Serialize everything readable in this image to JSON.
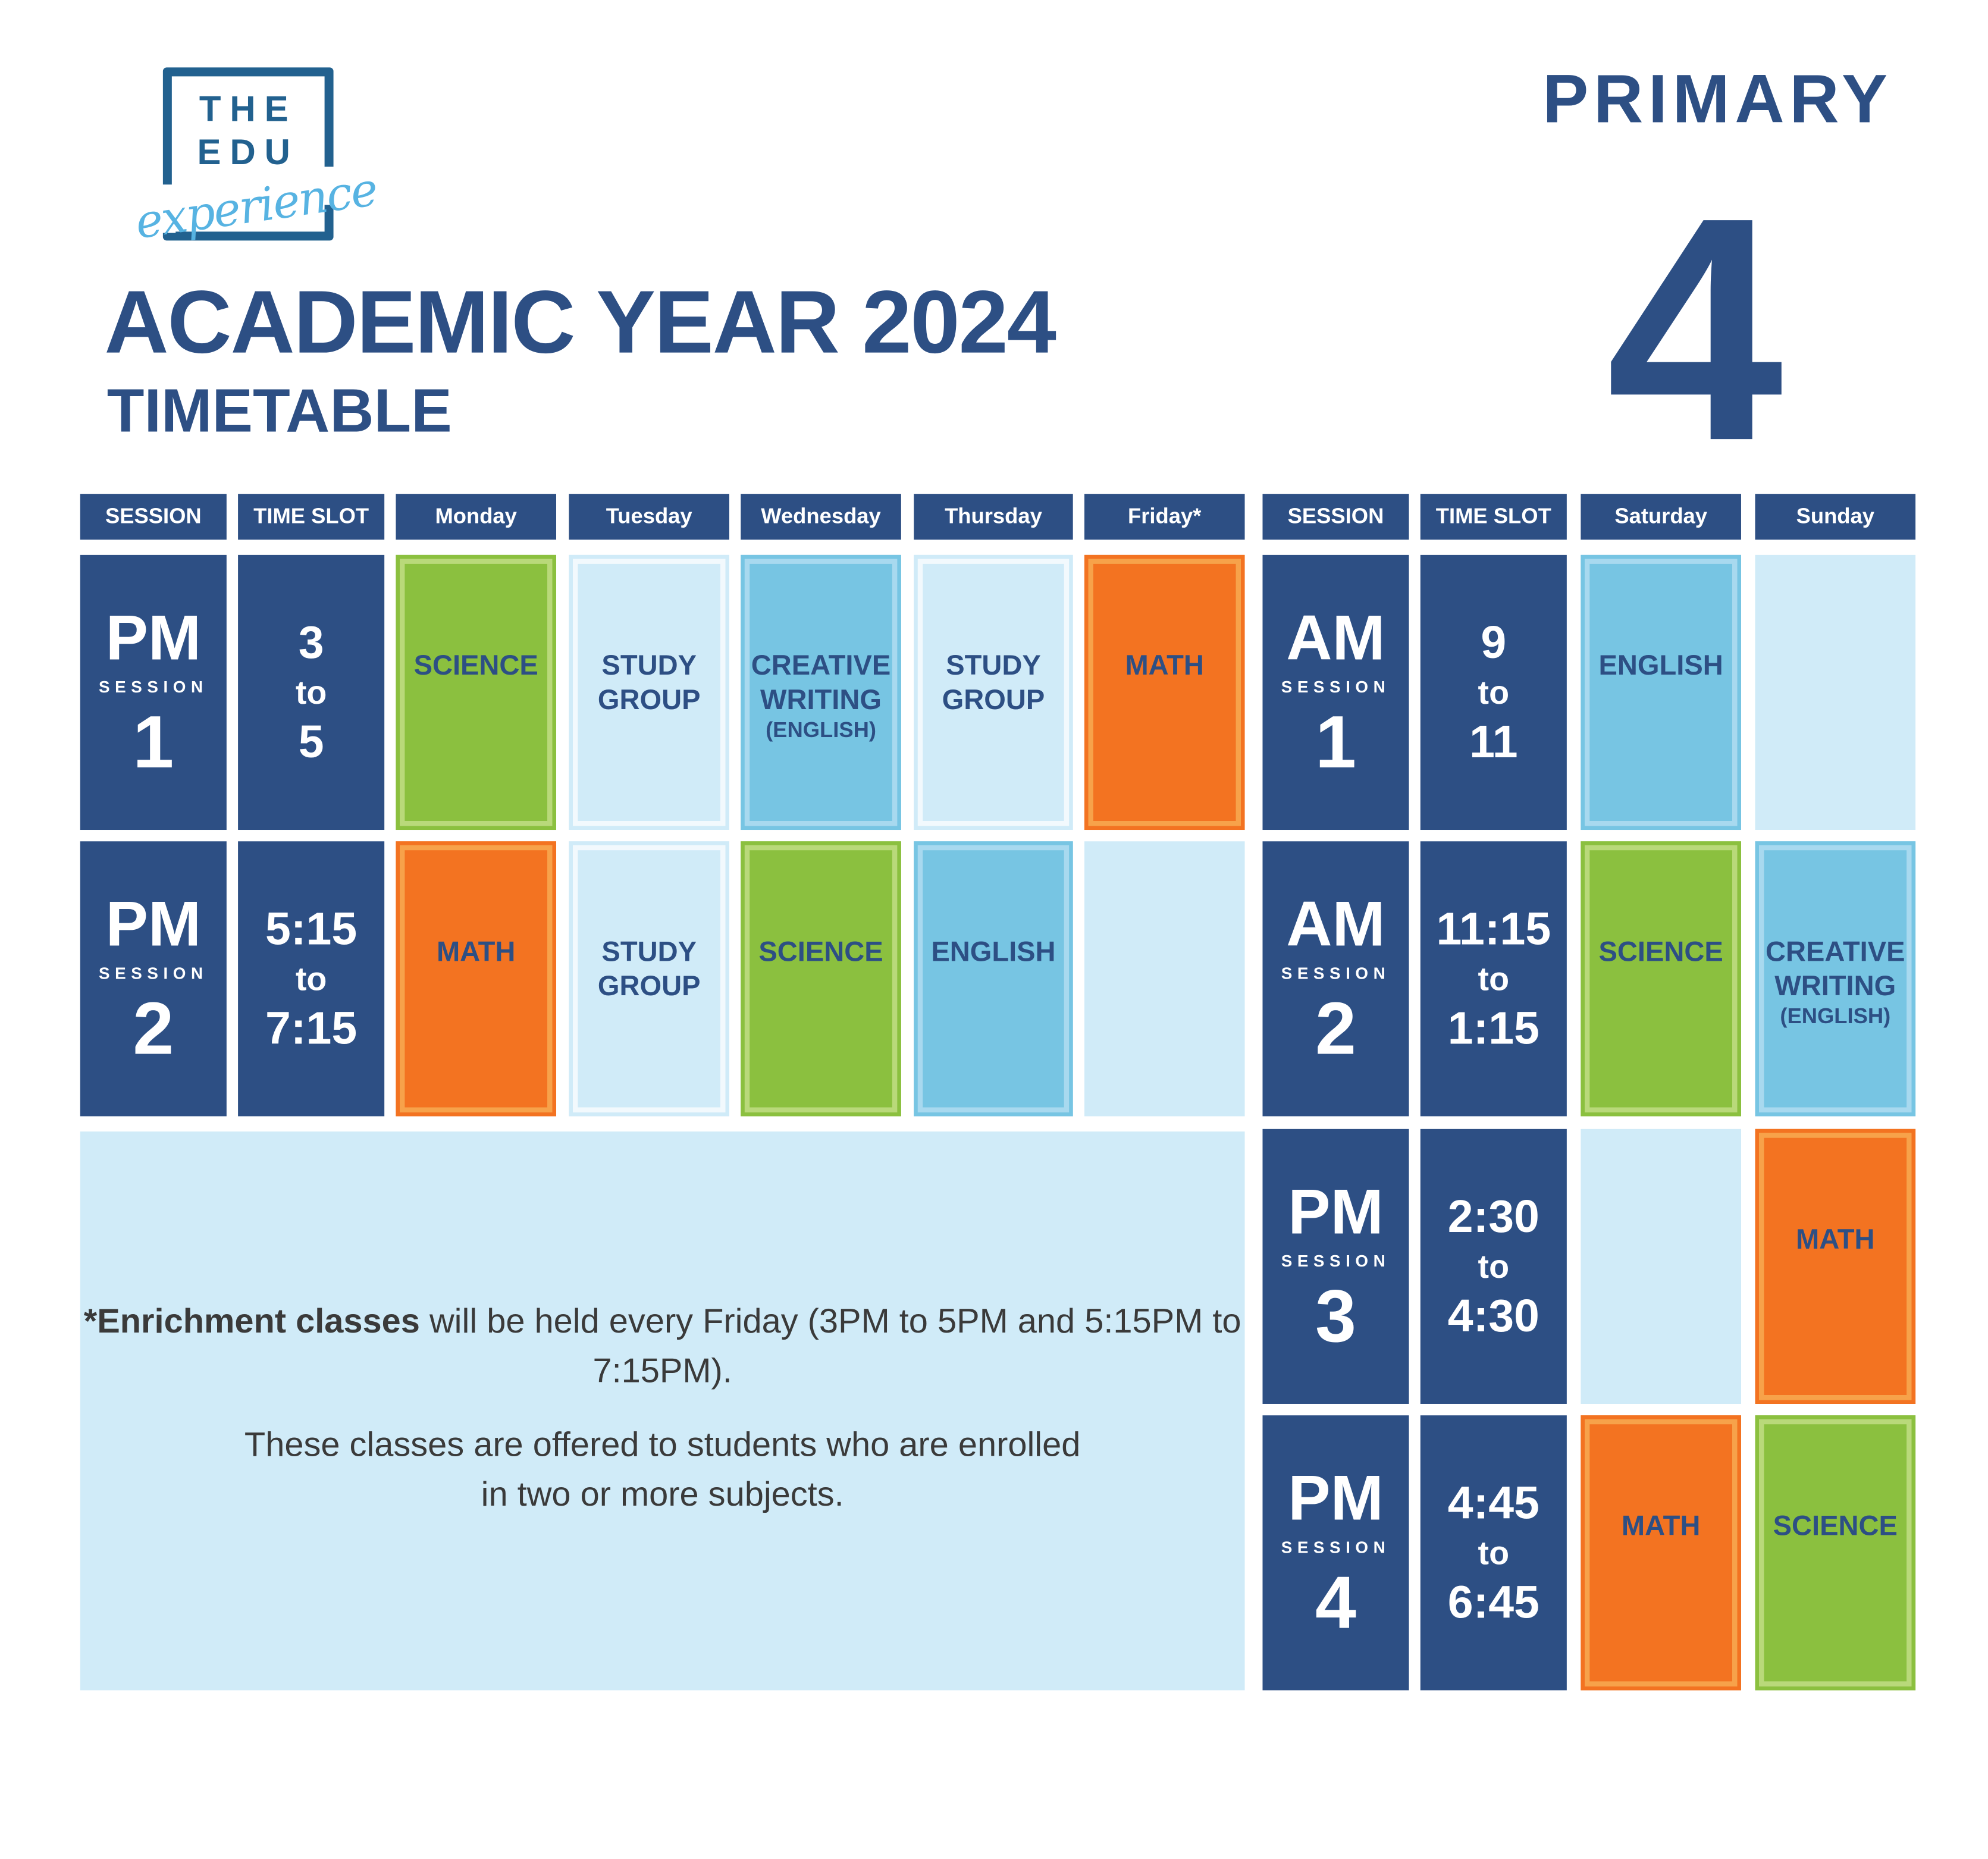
{
  "logo": {
    "line1": "THE",
    "line2": "EDU",
    "script": "experience"
  },
  "title": "ACADEMIC YEAR 2024",
  "subtitle": "TIMETABLE",
  "level": {
    "label": "PRIMARY",
    "grade": "4"
  },
  "colors": {
    "navy": "#2D4F84",
    "green": "#8BC03F",
    "orange": "#F37321",
    "blue": "#77C5E3",
    "light": "#D0EBF8"
  },
  "weekday": {
    "headers": [
      "SESSION",
      "TIME SLOT",
      "Monday",
      "Tuesday",
      "Wednesday",
      "Thursday",
      "Friday*"
    ],
    "rows": [
      {
        "period": "PM",
        "label": "SESSION",
        "num": "1",
        "time": [
          "3",
          "to",
          "5"
        ],
        "cells": [
          {
            "lines": [
              "SCIENCE"
            ],
            "color": "green"
          },
          {
            "lines": [
              "STUDY",
              "GROUP"
            ],
            "color": "light"
          },
          {
            "lines": [
              "CREATIVE",
              "WRITING",
              "(ENGLISH)"
            ],
            "color": "blue"
          },
          {
            "lines": [
              "STUDY",
              "GROUP"
            ],
            "color": "light"
          },
          {
            "lines": [
              "MATH"
            ],
            "color": "orange"
          }
        ]
      },
      {
        "period": "PM",
        "label": "SESSION",
        "num": "2",
        "time": [
          "5:15",
          "to",
          "7:15"
        ],
        "cells": [
          {
            "lines": [
              "MATH"
            ],
            "color": "orange"
          },
          {
            "lines": [
              "STUDY",
              "GROUP"
            ],
            "color": "light"
          },
          {
            "lines": [
              "SCIENCE"
            ],
            "color": "green"
          },
          {
            "lines": [
              "ENGLISH"
            ],
            "color": "blue"
          },
          {
            "lines": [],
            "color": "empty"
          }
        ]
      }
    ]
  },
  "weekend": {
    "headers": [
      "SESSION",
      "TIME SLOT",
      "Saturday",
      "Sunday"
    ],
    "rows": [
      {
        "period": "AM",
        "label": "SESSION",
        "num": "1",
        "time": [
          "9",
          "to",
          "11"
        ],
        "cells": [
          {
            "lines": [
              "ENGLISH"
            ],
            "color": "blue"
          },
          {
            "lines": [],
            "color": "empty"
          }
        ]
      },
      {
        "period": "AM",
        "label": "SESSION",
        "num": "2",
        "time": [
          "11:15",
          "to",
          "1:15"
        ],
        "cells": [
          {
            "lines": [
              "SCIENCE"
            ],
            "color": "green"
          },
          {
            "lines": [
              "CREATIVE",
              "WRITING",
              "(ENGLISH)"
            ],
            "color": "blue"
          }
        ]
      },
      {
        "period": "PM",
        "label": "SESSION",
        "num": "3",
        "time": [
          "2:30",
          "to",
          "4:30"
        ],
        "cells": [
          {
            "lines": [],
            "color": "empty"
          },
          {
            "lines": [
              "MATH"
            ],
            "color": "orange"
          }
        ]
      },
      {
        "period": "PM",
        "label": "SESSION",
        "num": "4",
        "time": [
          "4:45",
          "to",
          "6:45"
        ],
        "cells": [
          {
            "lines": [
              "MATH"
            ],
            "color": "orange"
          },
          {
            "lines": [
              "SCIENCE"
            ],
            "color": "green"
          }
        ]
      }
    ]
  },
  "note": {
    "bold": "*Enrichment classes",
    "text1": " will be held every Friday (3PM to 5PM and 5:15PM to 7:15PM).",
    "text2": "These classes are offered to students who are enrolled in two or more subjects."
  }
}
